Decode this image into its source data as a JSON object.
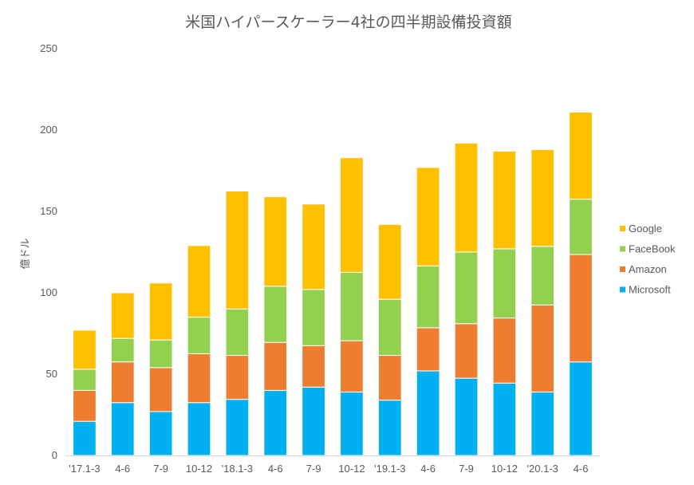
{
  "chart_data": {
    "type": "bar",
    "stacked": true,
    "title": "米国ハイパースケーラー4社の四半期設備投資額",
    "xlabel": "",
    "ylabel": "億ドル",
    "ylim": [
      0,
      250
    ],
    "yticks": [
      "0",
      "50",
      "100",
      "150",
      "200",
      "250"
    ],
    "grid": false,
    "legend_position": "right",
    "categories": [
      "'17.1-3",
      "4-6",
      "7-9",
      "10-12",
      "'18.1-3",
      "4-6",
      "7-9",
      "10-12",
      "'19.1-3",
      "4-6",
      "7-9",
      "10-12",
      "'20.1-3",
      "4-6"
    ],
    "series": [
      {
        "name": "Microsoft",
        "color": "#00B0F0",
        "values": [
          21,
          32.5,
          27,
          32.5,
          34.5,
          40,
          42,
          39,
          34,
          52,
          47.5,
          44.5,
          39,
          57.5
        ]
      },
      {
        "name": "Amazon",
        "color": "#ED7D31",
        "values": [
          19,
          25,
          27,
          30,
          27,
          29.5,
          25.5,
          31.5,
          27.5,
          26.5,
          33.5,
          40,
          53.5,
          66
        ]
      },
      {
        "name": "FaceBook",
        "color": "#92D050",
        "values": [
          13,
          14.5,
          17,
          22.5,
          28.5,
          34.5,
          34.5,
          42,
          34.5,
          38,
          44,
          42.5,
          36,
          34
        ]
      },
      {
        "name": "Google",
        "color": "#FFC000",
        "values": [
          24,
          28,
          35,
          44,
          72.5,
          55,
          52.5,
          70.5,
          46,
          60.5,
          67,
          60,
          59.5,
          53.5
        ]
      }
    ],
    "legend_order": [
      "Google",
      "FaceBook",
      "Amazon",
      "Microsoft"
    ]
  }
}
